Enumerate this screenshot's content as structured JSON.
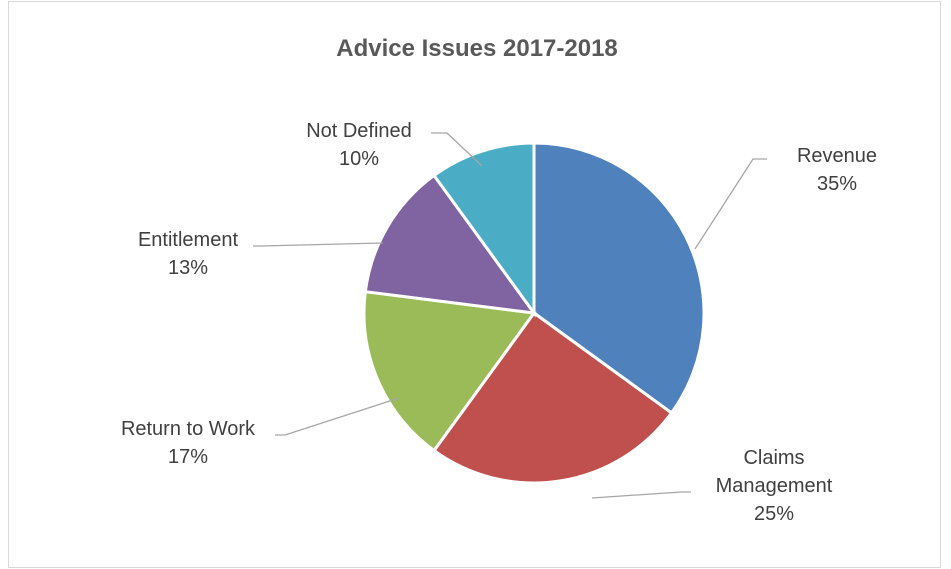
{
  "chart_data": {
    "type": "pie",
    "title": "Advice Issues 2017-2018",
    "slices": [
      {
        "label": "Revenue",
        "value": 35,
        "value_label": "35%",
        "color": "#4F81BD"
      },
      {
        "label": "Claims Management",
        "value": 25,
        "value_label": "25%",
        "color": "#C0504D"
      },
      {
        "label": "Return to Work",
        "value": 17,
        "value_label": "17%",
        "color": "#9BBB59"
      },
      {
        "label": "Entitlement",
        "value": 13,
        "value_label": "13%",
        "color": "#8064A2"
      },
      {
        "label": "Not Defined",
        "value": 10,
        "value_label": "10%",
        "color": "#4BACC6"
      }
    ],
    "legend": "none",
    "data_labels": "outside-with-leader-lines"
  }
}
